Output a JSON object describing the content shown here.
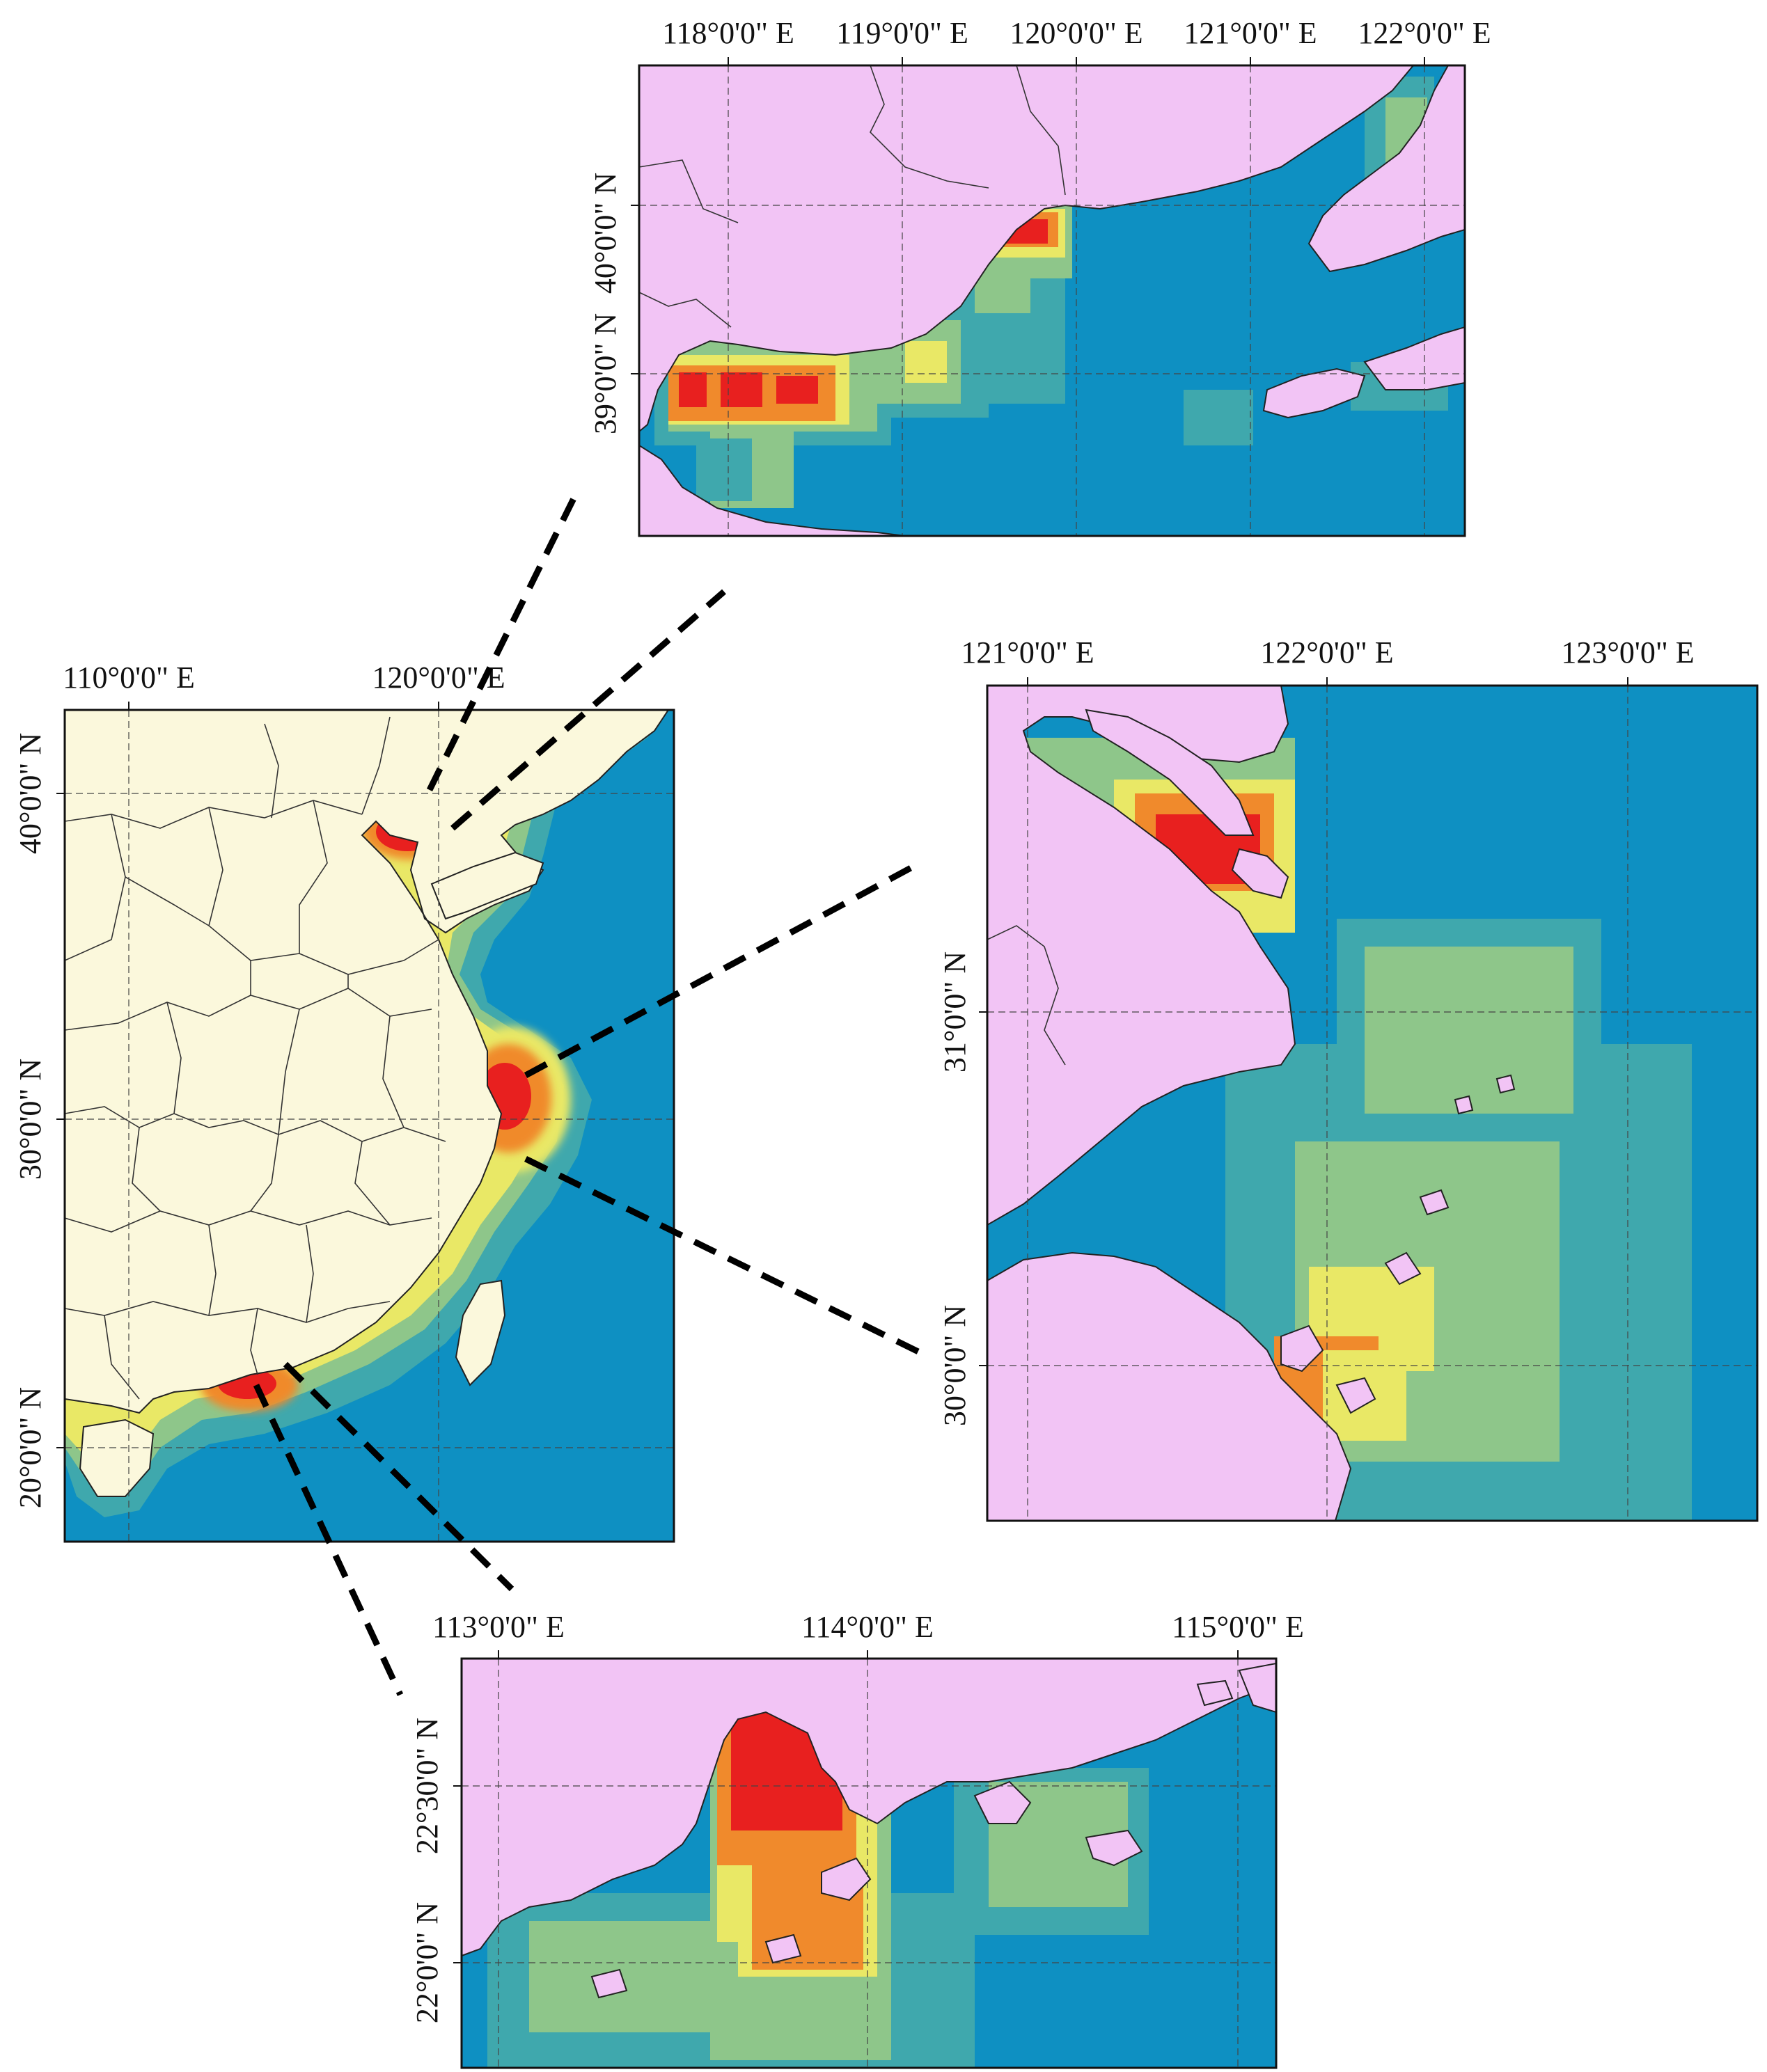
{
  "colors": {
    "land_inset": "#f2c4f5",
    "sea": "#0e90c2",
    "land_overview": "#fbf8dc",
    "hot": "#e8201f",
    "orange": "#f08a2c",
    "yellow": "#e9e866",
    "green": "#8ec68a",
    "teal": "#3fa8ad",
    "leader_line": "#000000"
  },
  "overview": {
    "x_ticks": [
      "110°0'0\" E",
      "120°0'0\" E"
    ],
    "y_ticks": [
      "40°0'0\" N",
      "30°0'0\" N",
      "20°0'0\" N"
    ]
  },
  "inset_bohai": {
    "x_ticks": [
      "118°0'0\" E",
      "119°0'0\" E",
      "120°0'0\" E",
      "121°0'0\" E",
      "122°0'0\" E"
    ],
    "y_ticks": [
      "40°0'0\" N",
      "39°0'0\" N"
    ]
  },
  "inset_yangtze": {
    "x_ticks": [
      "121°0'0\" E",
      "122°0'0\" E",
      "123°0'0\" E"
    ],
    "y_ticks": [
      "31°0'0\" N",
      "30°0'0\" N"
    ]
  },
  "inset_pearl": {
    "x_ticks": [
      "113°0'0\" E",
      "114°0'0\" E",
      "115°0'0\" E"
    ],
    "y_ticks": [
      "22°30'0\" N",
      "22°0'0\" N"
    ]
  }
}
